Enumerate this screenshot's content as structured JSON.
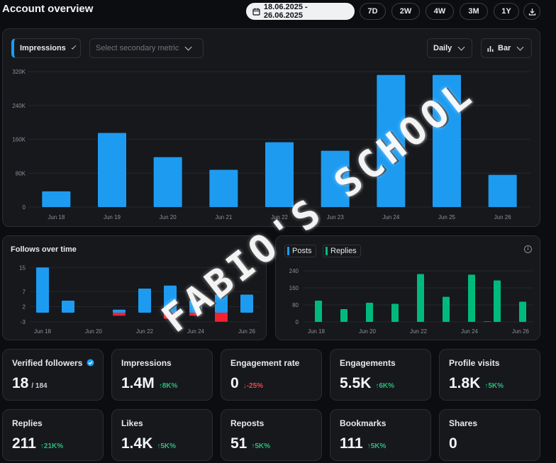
{
  "header": {
    "title": "Account overview",
    "date_range": "18.06.2025 - 26.06.2025",
    "ranges": [
      "7D",
      "2W",
      "4W",
      "3M",
      "1Y"
    ]
  },
  "main_chart": {
    "primary_metric": "Impressions",
    "secondary_metric_placeholder": "Select secondary metric",
    "interval": "Daily",
    "chart_type": "Bar"
  },
  "follows_card": {
    "title": "Follows over time"
  },
  "posts_card": {
    "legend": [
      "Posts",
      "Replies"
    ]
  },
  "watermark": "FABIO'S SCHOOL",
  "stats": [
    {
      "label": "Verified followers",
      "value": "18",
      "sub": "/ 184",
      "verified": true
    },
    {
      "label": "Impressions",
      "value": "1.4M",
      "delta": "↑8K%",
      "dir": "up"
    },
    {
      "label": "Engagement rate",
      "value": "0",
      "delta": "↓-25%",
      "dir": "down"
    },
    {
      "label": "Engagements",
      "value": "5.5K",
      "delta": "↑6K%",
      "dir": "up"
    },
    {
      "label": "Profile visits",
      "value": "1.8K",
      "delta": "↑5K%",
      "dir": "up"
    },
    {
      "label": "Replies",
      "value": "211",
      "delta": "↑21K%",
      "dir": "up"
    },
    {
      "label": "Likes",
      "value": "1.4K",
      "delta": "↑5K%",
      "dir": "up"
    },
    {
      "label": "Reposts",
      "value": "51",
      "delta": "↑5K%",
      "dir": "up"
    },
    {
      "label": "Bookmarks",
      "value": "111",
      "delta": "↑5K%",
      "dir": "up"
    },
    {
      "label": "Shares",
      "value": "0"
    }
  ],
  "colors": {
    "blue": "#1d9bf0",
    "green": "#00ba7c",
    "red": "#f4212e"
  },
  "chart_data": [
    {
      "type": "bar",
      "categories": [
        "Jun 18",
        "Jun 19",
        "Jun 20",
        "Jun 21",
        "Jun 22",
        "Jun 23",
        "Jun 24",
        "Jun 25",
        "Jun 26"
      ],
      "series": [
        {
          "values": [
            37000,
            175000,
            118000,
            88000,
            153000,
            133000,
            312000,
            312000,
            76000
          ]
        }
      ],
      "yticks": [
        "0",
        "80K",
        "160K",
        "240K",
        "320K"
      ],
      "ylim": [
        0,
        320000
      ]
    },
    {
      "type": "bar",
      "categories": [
        "Jun 18",
        "Jun 19",
        "Jun 20",
        "Jun 21",
        "Jun 22",
        "Jun 23",
        "Jun 24",
        "Jun 25",
        "Jun 26"
      ],
      "xtick_labels": [
        "Jun 18",
        "Jun 20",
        "Jun 22",
        "Jun 24",
        "Jun 26"
      ],
      "series": [
        {
          "name": "gained",
          "values": [
            15,
            4,
            0,
            1,
            8,
            9,
            4,
            6,
            6
          ]
        },
        {
          "name": "lost",
          "values": [
            0,
            0,
            0,
            -1,
            0,
            -2,
            -1,
            -3,
            0
          ]
        }
      ],
      "yticks": [
        "-3",
        "2",
        "7",
        "15"
      ],
      "ylim": [
        -4,
        16
      ]
    },
    {
      "type": "bar",
      "categories": [
        "Jun 18",
        "Jun 19",
        "Jun 20",
        "Jun 21",
        "Jun 22",
        "Jun 23",
        "Jun 24",
        "Jun 25",
        "Jun 26"
      ],
      "xtick_labels": [
        "Jun 18",
        "Jun 20",
        "Jun 22",
        "Jun 24",
        "Jun 26"
      ],
      "series": [
        {
          "name": "Posts",
          "values": [
            0,
            0,
            0,
            0,
            0,
            0,
            0,
            2,
            0
          ]
        },
        {
          "name": "Replies",
          "values": [
            100,
            60,
            90,
            85,
            225,
            118,
            222,
            195,
            95
          ]
        }
      ],
      "yticks": [
        "0",
        "80",
        "160",
        "240"
      ],
      "ylim": [
        0,
        240
      ]
    }
  ]
}
